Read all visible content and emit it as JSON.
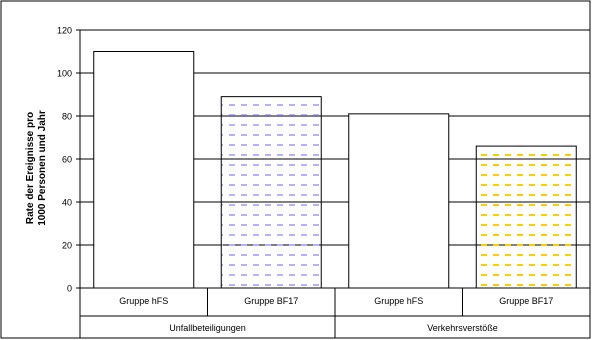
{
  "chart_data": {
    "type": "bar",
    "groups": [
      "Unfallbeteiligungen",
      "Verkehrsverstöße"
    ],
    "categories": [
      "Gruppe hFS",
      "Gruppe BF17",
      "Gruppe hFS",
      "Gruppe BF17"
    ],
    "values": [
      110,
      89,
      81,
      66
    ],
    "ylabel_line1": "Rate der Ereignisse pro",
    "ylabel_line2": "1000 Personen und Jahr",
    "ylim": [
      0,
      120
    ],
    "yticks": [
      "0",
      "20",
      "40",
      "60",
      "80",
      "100",
      "120"
    ],
    "grid": true,
    "colors": {
      "hFS_fill": "#ffffff",
      "bf17_unfall_dash": "#9999ff",
      "bf17_verkehr_dash": "#ffcc00",
      "frame": "#000000"
    }
  }
}
